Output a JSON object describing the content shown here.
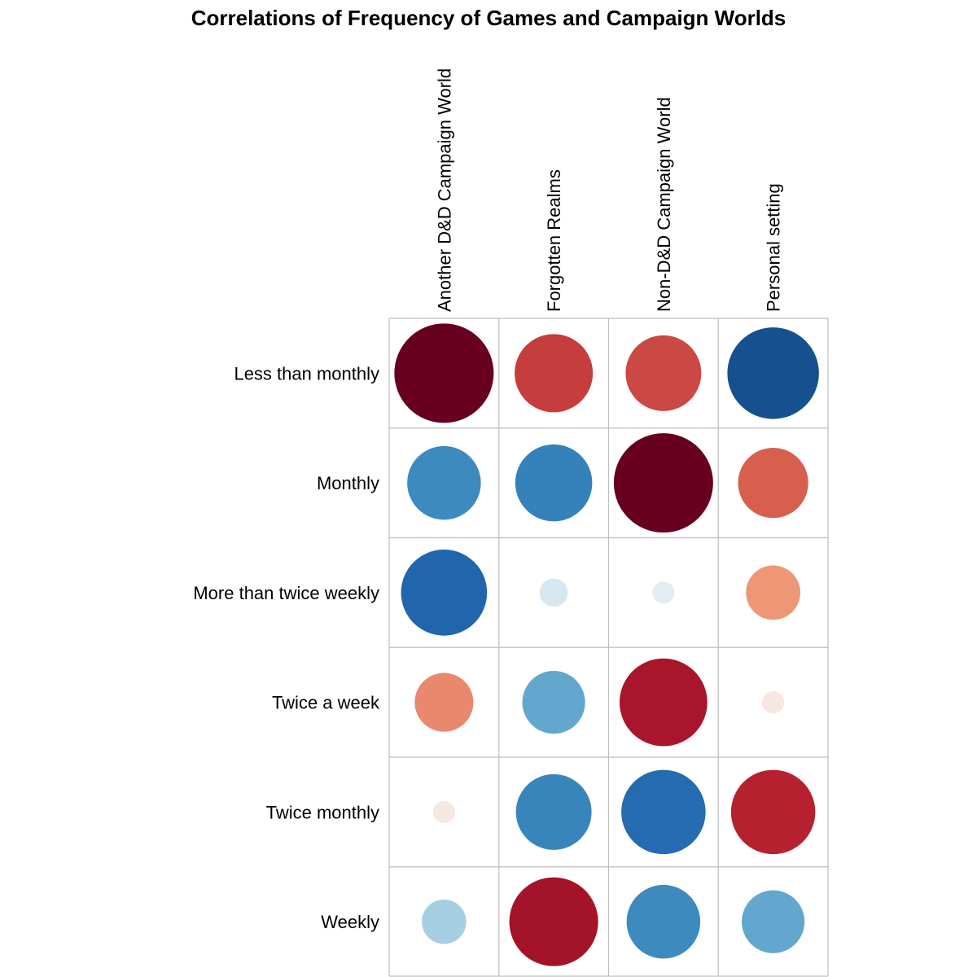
{
  "chart_data": {
    "type": "correlation-bubble-matrix",
    "title": "Correlations of Frequency of Games and Campaign Worlds",
    "columns": [
      "Another D&D Campaign World",
      "Forgotten Realms",
      "Non-D&D Campaign World",
      "Personal setting"
    ],
    "rows": [
      "Less than monthly",
      "Monthly",
      "More than twice weekly",
      "Twice a week",
      "Twice monthly",
      "Weekly"
    ],
    "values": [
      [
        1.0,
        0.62,
        0.58,
        -0.85
      ],
      [
        -0.55,
        -0.6,
        1.0,
        0.5
      ],
      [
        -0.75,
        -0.08,
        -0.05,
        0.3
      ],
      [
        0.35,
        -0.4,
        0.78,
        0.05
      ],
      [
        0.05,
        -0.58,
        -0.72,
        0.72
      ],
      [
        -0.2,
        0.8,
        -0.55,
        -0.4
      ]
    ],
    "value_range": [
      -1,
      1
    ],
    "color_scale": {
      "negative": "#053061",
      "neutral": "#f7f7f7",
      "positive": "#67001f"
    },
    "grid": true,
    "legend": "none"
  }
}
